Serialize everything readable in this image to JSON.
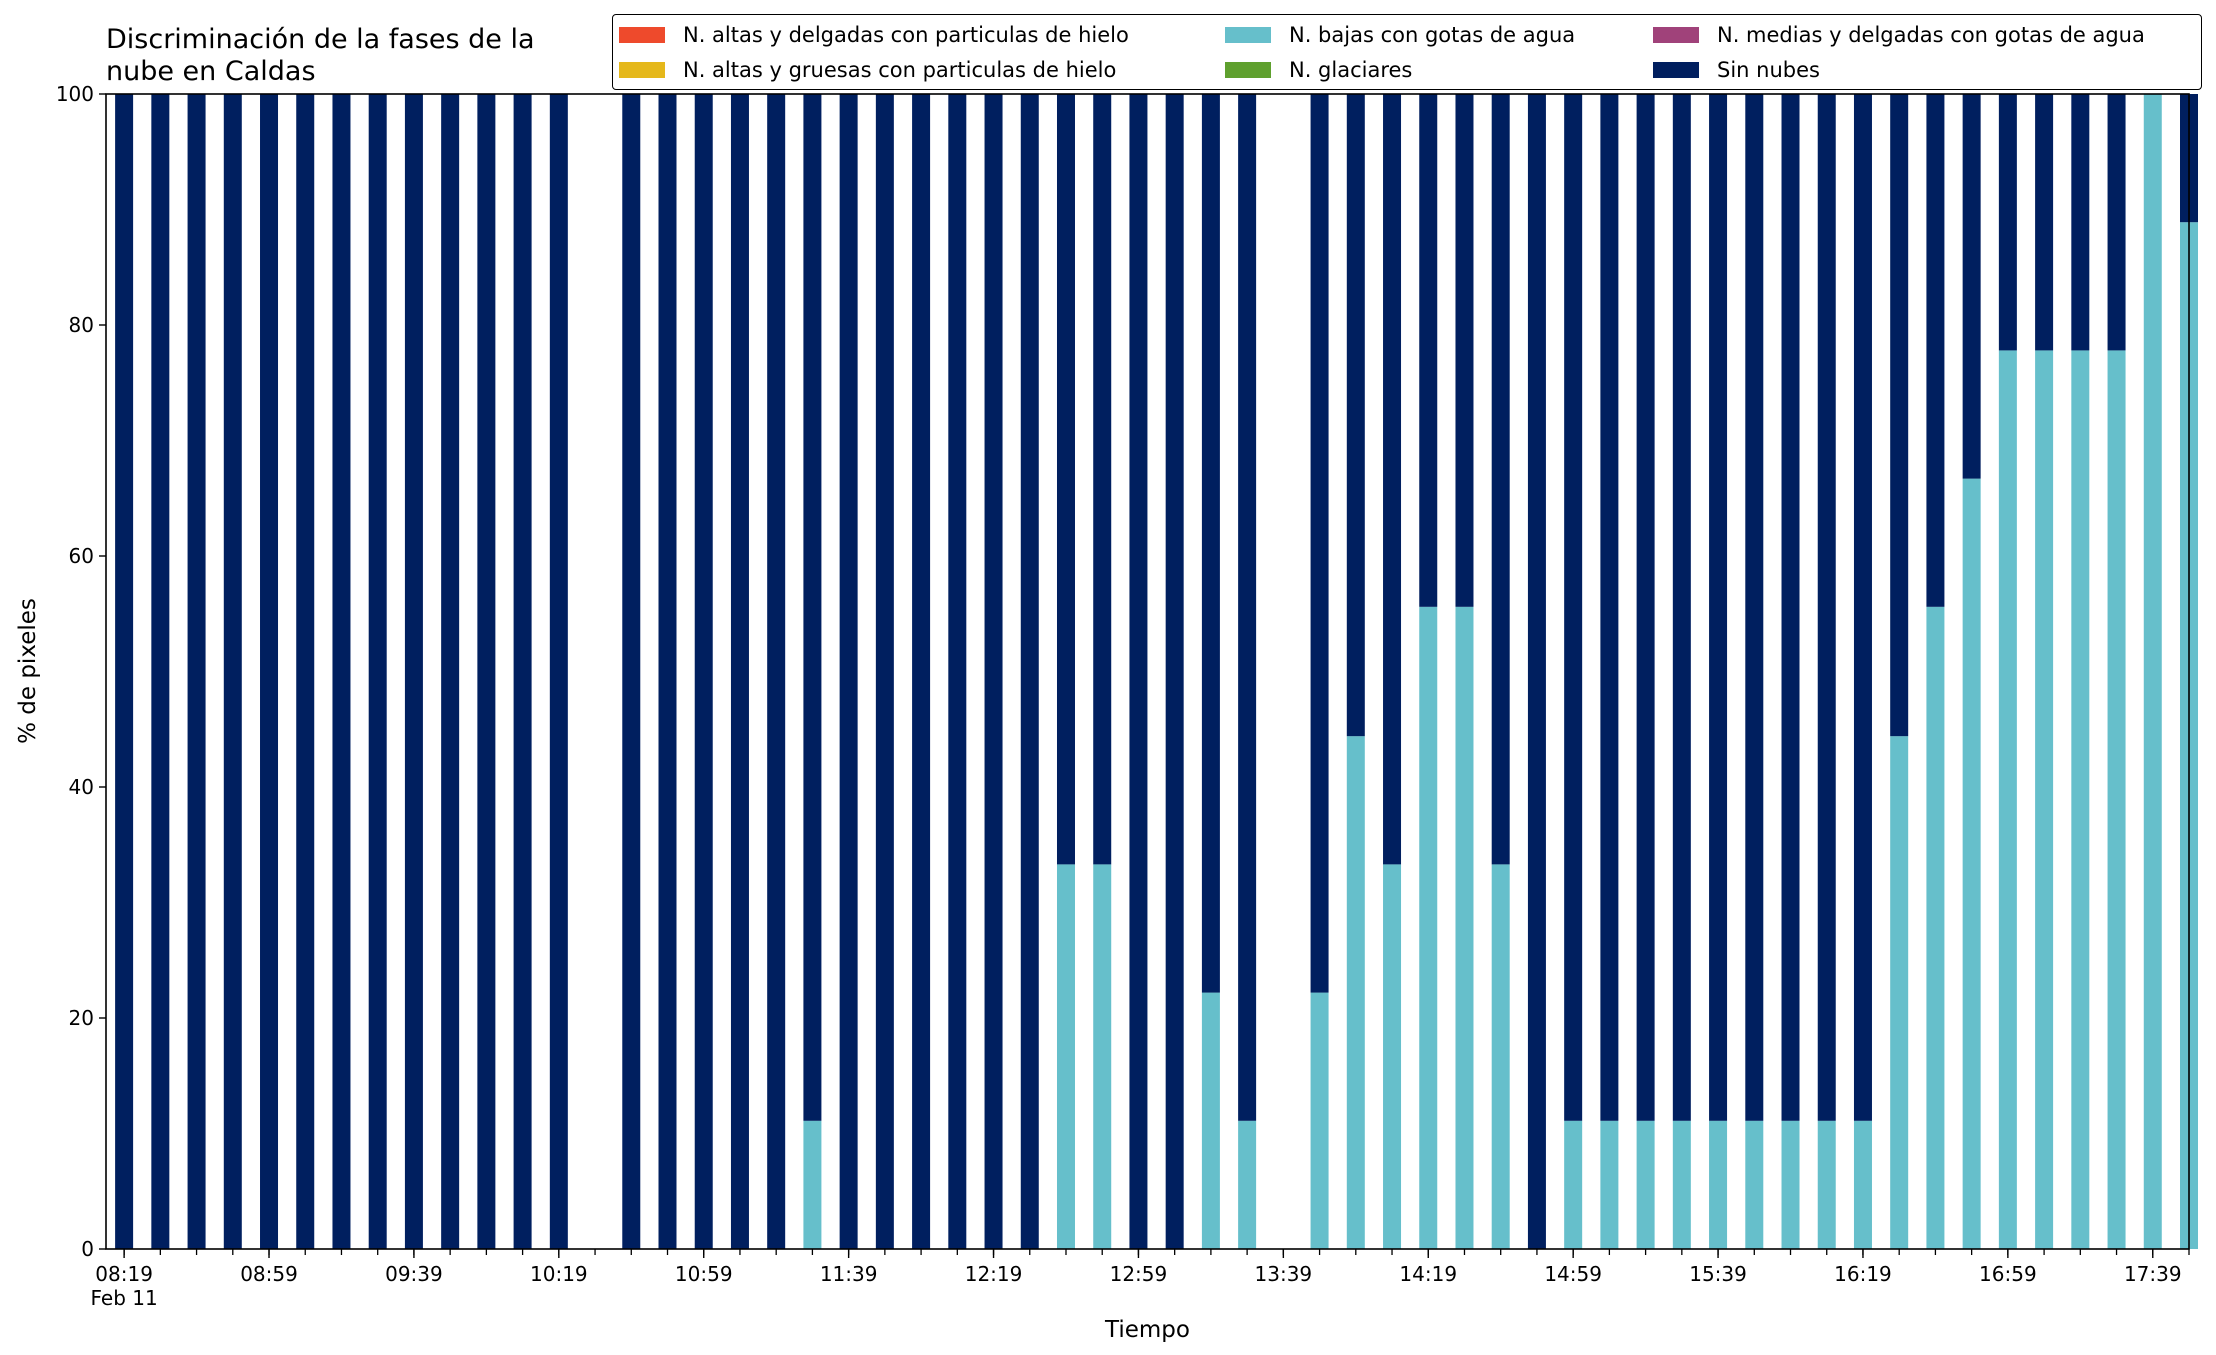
{
  "chart_data": {
    "type": "bar",
    "stacked": true,
    "title": "Discriminación de la fases de la nube en Caldas",
    "title_lines": [
      "Discriminación de la fases de la",
      "nube en Caldas"
    ],
    "xlabel": "Tiempo",
    "ylabel": "% de pixeles",
    "ylim": [
      0,
      100
    ],
    "yticks": [
      0,
      20,
      40,
      60,
      80,
      100
    ],
    "xlim": [
      "08:14",
      "17:49"
    ],
    "date_label": "Feb 11",
    "xtick_labels": [
      "08:19",
      "08:59",
      "09:39",
      "10:19",
      "10:59",
      "11:39",
      "12:19",
      "12:59",
      "13:39",
      "14:19",
      "14:59",
      "15:39",
      "16:19",
      "16:59",
      "17:39"
    ],
    "legend_position": "top",
    "categories": [
      "08:19",
      "08:29",
      "08:39",
      "08:49",
      "08:59",
      "09:09",
      "09:19",
      "09:29",
      "09:39",
      "09:49",
      "09:59",
      "10:09",
      "10:19",
      "10:29",
      "10:39",
      "10:49",
      "10:59",
      "11:09",
      "11:19",
      "11:29",
      "11:39",
      "11:49",
      "11:59",
      "12:09",
      "12:19",
      "12:29",
      "12:39",
      "12:49",
      "12:59",
      "13:09",
      "13:19",
      "13:29",
      "13:39",
      "13:49",
      "13:59",
      "14:09",
      "14:19",
      "14:29",
      "14:39",
      "14:49",
      "14:59",
      "15:09",
      "15:19",
      "15:29",
      "15:39",
      "15:49",
      "15:59",
      "16:09",
      "16:19",
      "16:29",
      "16:39",
      "16:49",
      "16:59",
      "17:09",
      "17:19",
      "17:29",
      "17:39",
      "17:49"
    ],
    "series": [
      {
        "name": "N. altas y delgadas con particulas de hielo",
        "color": "#ee4a2c",
        "values": [
          0,
          0,
          0,
          0,
          0,
          0,
          0,
          0,
          0,
          0,
          0,
          0,
          0,
          null,
          0,
          0,
          0,
          0,
          0,
          0,
          0,
          0,
          0,
          0,
          0,
          0,
          0,
          0,
          0,
          0,
          0,
          0,
          null,
          0,
          0,
          0,
          0,
          0,
          0,
          0,
          0,
          0,
          0,
          0,
          0,
          0,
          0,
          0,
          0,
          0,
          0,
          0,
          0,
          0,
          0,
          0,
          0,
          0
        ]
      },
      {
        "name": "N. altas y gruesas con particulas de hielo",
        "color": "#e5b81b",
        "values": [
          0,
          0,
          0,
          0,
          0,
          0,
          0,
          0,
          0,
          0,
          0,
          0,
          0,
          null,
          0,
          0,
          0,
          0,
          0,
          0,
          0,
          0,
          0,
          0,
          0,
          0,
          0,
          0,
          0,
          0,
          0,
          0,
          null,
          0,
          0,
          0,
          0,
          0,
          0,
          0,
          0,
          0,
          0,
          0,
          0,
          0,
          0,
          0,
          0,
          0,
          0,
          0,
          0,
          0,
          0,
          0,
          0,
          0
        ]
      },
      {
        "name": "N. bajas con gotas de agua",
        "color": "#66bfcb",
        "values": [
          0,
          0,
          0,
          0,
          0,
          0,
          0,
          0,
          0,
          0,
          0,
          0,
          0,
          null,
          0,
          0,
          0,
          0,
          0,
          11.1,
          0,
          0,
          0,
          0,
          0,
          0,
          33.3,
          33.3,
          0,
          0,
          22.2,
          11.1,
          null,
          22.2,
          44.4,
          33.3,
          55.6,
          55.6,
          33.3,
          0,
          11.1,
          11.1,
          11.1,
          11.1,
          11.1,
          11.1,
          11.1,
          11.1,
          11.1,
          44.4,
          55.6,
          66.7,
          77.8,
          77.8,
          77.8,
          77.8,
          100,
          88.9
        ]
      },
      {
        "name": "N. glaciares",
        "color": "#5fa02e",
        "values": [
          0,
          0,
          0,
          0,
          0,
          0,
          0,
          0,
          0,
          0,
          0,
          0,
          0,
          null,
          0,
          0,
          0,
          0,
          0,
          0,
          0,
          0,
          0,
          0,
          0,
          0,
          0,
          0,
          0,
          0,
          0,
          0,
          null,
          0,
          0,
          0,
          0,
          0,
          0,
          0,
          0,
          0,
          0,
          0,
          0,
          0,
          0,
          0,
          0,
          0,
          0,
          0,
          0,
          0,
          0,
          0,
          0,
          0
        ]
      },
      {
        "name": "N. medias y delgadas con gotas de agua",
        "color": "#a0427a",
        "values": [
          0,
          0,
          0,
          0,
          0,
          0,
          0,
          0,
          0,
          0,
          0,
          0,
          0,
          null,
          0,
          0,
          0,
          0,
          0,
          0,
          0,
          0,
          0,
          0,
          0,
          0,
          0,
          0,
          0,
          0,
          0,
          0,
          null,
          0,
          0,
          0,
          0,
          0,
          0,
          0,
          0,
          0,
          0,
          0,
          0,
          0,
          0,
          0,
          0,
          0,
          0,
          0,
          0,
          0,
          0,
          0,
          0,
          0
        ]
      },
      {
        "name": "Sin nubes",
        "color": "#001f5f",
        "values": [
          100,
          100,
          100,
          100,
          100,
          100,
          100,
          100,
          100,
          100,
          100,
          100,
          100,
          null,
          100,
          100,
          100,
          100,
          100,
          88.9,
          100,
          100,
          100,
          100,
          100,
          100,
          66.7,
          66.7,
          100,
          100,
          77.8,
          88.9,
          null,
          77.8,
          55.6,
          66.7,
          44.4,
          44.4,
          66.7,
          100,
          88.9,
          88.9,
          88.9,
          88.9,
          88.9,
          88.9,
          88.9,
          88.9,
          88.9,
          55.6,
          44.4,
          33.3,
          22.2,
          22.2,
          22.2,
          22.2,
          0,
          11.1
        ]
      }
    ]
  }
}
